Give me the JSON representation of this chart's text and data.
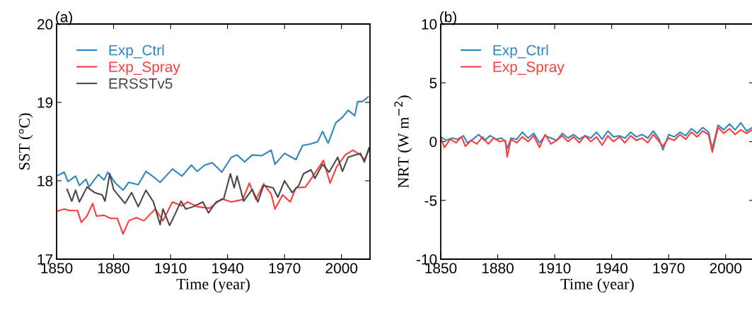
{
  "chart_data": [
    {
      "type": "line",
      "title": "(a)",
      "xlabel": "Time (year)",
      "ylabel": "SST (°C)",
      "xlim": [
        1850,
        2015
      ],
      "xticks": [
        1850,
        1880,
        1910,
        1940,
        1970,
        2000
      ],
      "ylim": [
        17,
        20
      ],
      "yticks": [
        17,
        18,
        19,
        20
      ],
      "legend": "top left",
      "grid": false,
      "series": [
        {
          "name": "Exp_Ctrl",
          "color": "#2e86c1",
          "x": [
            1850,
            1854,
            1856,
            1860,
            1862,
            1865.5,
            1867,
            1872,
            1875,
            1877,
            1881,
            1885,
            1888,
            1893,
            1897,
            1901,
            1904.5,
            1911,
            1916,
            1921,
            1924,
            1928,
            1932,
            1937,
            1942,
            1945,
            1949,
            1953,
            1958,
            1963,
            1965,
            1970,
            1976,
            1979.5,
            1984,
            1987.5,
            1990,
            1993,
            1997,
            2000.5,
            2003.5,
            2007,
            2008.5,
            2011,
            2014
          ],
          "values": [
            18.06,
            18.11,
            17.99,
            18.06,
            17.94,
            18.02,
            17.92,
            18.08,
            18.01,
            18.11,
            17.97,
            17.88,
            17.98,
            17.95,
            18.12,
            18.05,
            17.98,
            18.15,
            18.06,
            18.2,
            18.12,
            18.2,
            18.23,
            18.11,
            18.3,
            18.33,
            18.24,
            18.33,
            18.32,
            18.39,
            18.21,
            18.35,
            18.27,
            18.45,
            18.47,
            18.5,
            18.63,
            18.48,
            18.74,
            18.81,
            18.9,
            18.83,
            19.01,
            19.01,
            19.07
          ]
        },
        {
          "name": "Exp_Spray",
          "color": "#ff3b3b",
          "x": [
            1850,
            1854,
            1857,
            1861,
            1863,
            1866,
            1869,
            1871,
            1875,
            1878.5,
            1882,
            1885,
            1888,
            1892,
            1896,
            1899.5,
            1902,
            1906,
            1911,
            1916,
            1919,
            1924,
            1930.5,
            1937,
            1942,
            1948,
            1951.5,
            1955,
            1959,
            1963,
            1965,
            1969,
            1973,
            1976,
            1981,
            1985,
            1990.5,
            1994,
            1997.5,
            2002,
            2006,
            2010,
            2012,
            2014.5
          ],
          "values": [
            17.61,
            17.64,
            17.62,
            17.62,
            17.47,
            17.55,
            17.71,
            17.55,
            17.56,
            17.52,
            17.52,
            17.32,
            17.49,
            17.53,
            17.49,
            17.58,
            17.64,
            17.49,
            17.73,
            17.68,
            17.73,
            17.67,
            17.65,
            17.77,
            17.73,
            17.76,
            17.97,
            17.76,
            17.96,
            17.83,
            17.64,
            17.82,
            17.73,
            17.91,
            17.92,
            18.06,
            18.26,
            17.97,
            18.18,
            18.33,
            18.39,
            18.33,
            18.27,
            18.39
          ]
        },
        {
          "name": "ERSSTv5",
          "color": "#484848",
          "x": [
            1855.5,
            1858,
            1860,
            1862,
            1866,
            1870,
            1874,
            1875.5,
            1878,
            1880,
            1882,
            1886,
            1889.5,
            1893,
            1897,
            1901,
            1904.5,
            1906,
            1909.5,
            1912.5,
            1915.5,
            1918,
            1922,
            1927,
            1930,
            1934,
            1938,
            1941.5,
            1943.5,
            1945,
            1948.5,
            1953,
            1956,
            1959,
            1964,
            1966.5,
            1970,
            1974,
            1977.5,
            1980,
            1984,
            1986,
            1990,
            1993.5,
            1998,
            2000.5,
            2003.5,
            2006,
            2010,
            2012,
            2014.5
          ],
          "values": [
            17.89,
            17.74,
            17.88,
            17.73,
            17.92,
            17.85,
            17.82,
            17.74,
            18.09,
            17.89,
            17.83,
            17.71,
            17.85,
            17.67,
            17.88,
            17.73,
            17.44,
            17.64,
            17.43,
            17.58,
            17.74,
            17.64,
            17.67,
            17.73,
            17.59,
            17.73,
            17.77,
            18.09,
            17.91,
            18.06,
            17.74,
            17.89,
            17.73,
            17.94,
            17.91,
            17.79,
            18.0,
            17.85,
            17.94,
            18.09,
            18.14,
            18.03,
            18.21,
            18.11,
            18.3,
            18.12,
            18.3,
            18.32,
            18.35,
            18.24,
            18.42
          ]
        }
      ]
    },
    {
      "type": "line",
      "title": "(b)",
      "xlabel": "Time (year)",
      "ylabel": "NRT (W m$^{−2}$)",
      "xlim": [
        1850,
        2015
      ],
      "xticks": [
        1850,
        1880,
        1910,
        1940,
        1970,
        2000
      ],
      "ylim": [
        -10,
        10
      ],
      "yticks": [
        {
          "value": -10,
          "label": "-10"
        },
        {
          "value": -5,
          "label": "-5"
        },
        0,
        5,
        10
      ],
      "legend": "top left",
      "grid": false,
      "series": [
        {
          "name": "Exp_Ctrl",
          "color": "#2e86c1",
          "x": [
            1850,
            1853,
            1856,
            1859,
            1862,
            1864,
            1867,
            1870,
            1873,
            1876,
            1879,
            1882,
            1884,
            1885,
            1887,
            1890,
            1893,
            1896,
            1899,
            1902,
            1905,
            1908,
            1911,
            1914,
            1917,
            1920,
            1923,
            1926,
            1929,
            1932,
            1935,
            1938,
            1941,
            1944,
            1947,
            1950,
            1953,
            1956,
            1959,
            1962,
            1965,
            1967,
            1970,
            1973,
            1976,
            1979,
            1982,
            1985,
            1988,
            1991,
            1993,
            1996,
            1999,
            2002,
            2005,
            2008,
            2011,
            2014
          ],
          "values": [
            0.4,
            0.1,
            0.3,
            0.2,
            0.5,
            -0.1,
            0.2,
            0.6,
            0.1,
            0.5,
            0.2,
            0.3,
            0.0,
            -0.6,
            0.3,
            0.2,
            0.8,
            0.3,
            0.7,
            -0.1,
            0.5,
            0.3,
            0.1,
            0.7,
            0.3,
            0.6,
            0.2,
            0.5,
            0.3,
            0.8,
            0.2,
            0.9,
            0.4,
            0.5,
            0.3,
            0.8,
            0.4,
            0.6,
            0.3,
            0.9,
            0.2,
            -0.7,
            0.6,
            0.4,
            0.8,
            0.5,
            1.1,
            0.7,
            1.2,
            0.8,
            -0.6,
            1.4,
            1.0,
            1.5,
            1.0,
            1.6,
            0.9,
            1.2
          ]
        },
        {
          "name": "Exp_Spray",
          "color": "#ff3b3b",
          "x": [
            1850,
            1852,
            1855,
            1858,
            1861,
            1863,
            1866,
            1869,
            1872,
            1875,
            1878,
            1881,
            1884,
            1885,
            1887,
            1890,
            1893,
            1896,
            1899,
            1902,
            1905,
            1908,
            1911,
            1914,
            1917,
            1920,
            1923,
            1926,
            1929,
            1932,
            1935,
            1938,
            1941,
            1944,
            1947,
            1950,
            1953,
            1956,
            1959,
            1962,
            1965,
            1967,
            1970,
            1973,
            1976,
            1979,
            1982,
            1985,
            1988,
            1991,
            1993,
            1996,
            1999,
            2002,
            2005,
            2008,
            2011,
            2014
          ],
          "values": [
            0.3,
            -0.5,
            0.2,
            -0.1,
            0.4,
            -0.4,
            0.1,
            -0.2,
            0.4,
            -0.2,
            0.3,
            0.0,
            0.1,
            -1.3,
            0.2,
            -0.1,
            0.4,
            0.0,
            0.5,
            -0.5,
            0.6,
            -0.2,
            0.1,
            0.5,
            0.0,
            0.4,
            -0.1,
            0.5,
            0.0,
            0.4,
            -0.3,
            0.5,
            0.0,
            0.4,
            -0.1,
            0.5,
            0.1,
            0.3,
            -0.1,
            0.6,
            0.0,
            -0.4,
            0.3,
            0.1,
            0.6,
            0.2,
            0.8,
            0.4,
            0.9,
            0.6,
            -0.9,
            1.2,
            0.7,
            1.1,
            0.6,
            1.0,
            0.7,
            1.0
          ]
        }
      ]
    }
  ]
}
